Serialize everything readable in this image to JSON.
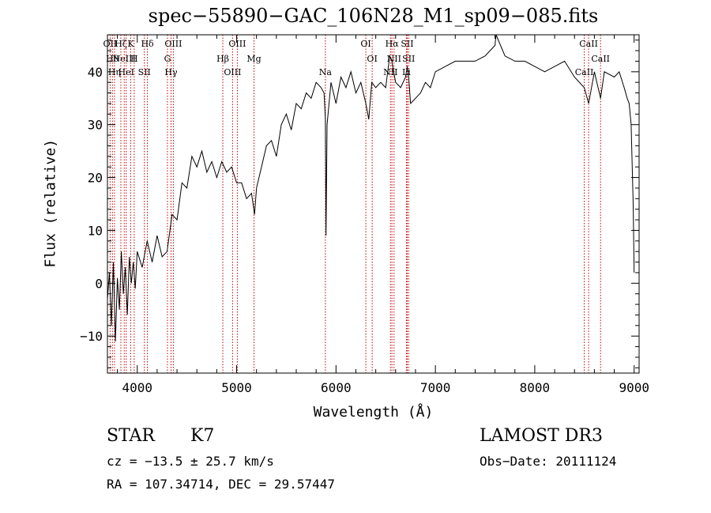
{
  "chart_data": {
    "type": "line",
    "title": "spec−55890−GAC_106N28_M1_sp09−085.fits",
    "xlabel": "Wavelength (Å)",
    "ylabel": "Flux (relative)",
    "xlim": [
      3700,
      9050
    ],
    "ylim": [
      -17,
      47
    ],
    "xticks": [
      4000,
      5000,
      6000,
      7000,
      8000,
      9000
    ],
    "yticks": [
      -10,
      0,
      10,
      20,
      30,
      40
    ],
    "ytick_labels": [
      "−10",
      "0",
      "10",
      "20",
      "30",
      "40"
    ],
    "grid": false,
    "series": [
      {
        "name": "flux",
        "x": [
          3700,
          3720,
          3740,
          3760,
          3780,
          3800,
          3820,
          3840,
          3860,
          3880,
          3900,
          3920,
          3940,
          3960,
          3980,
          4000,
          4050,
          4100,
          4150,
          4200,
          4250,
          4300,
          4350,
          4400,
          4450,
          4500,
          4550,
          4600,
          4650,
          4700,
          4750,
          4800,
          4850,
          4900,
          4950,
          5000,
          5050,
          5100,
          5150,
          5180,
          5200,
          5250,
          5300,
          5350,
          5400,
          5450,
          5500,
          5550,
          5600,
          5650,
          5700,
          5750,
          5800,
          5850,
          5880,
          5893,
          5900,
          5910,
          5950,
          6000,
          6050,
          6100,
          6150,
          6200,
          6250,
          6300,
          6330,
          6360,
          6400,
          6450,
          6500,
          6540,
          6563,
          6580,
          6600,
          6650,
          6700,
          6717,
          6731,
          6750,
          6800,
          6850,
          6900,
          6950,
          7000,
          7100,
          7200,
          7300,
          7400,
          7500,
          7600,
          7610,
          7700,
          7800,
          7900,
          8000,
          8100,
          8200,
          8300,
          8400,
          8498,
          8542,
          8600,
          8662,
          8700,
          8800,
          8850,
          8900,
          8930,
          8950,
          8970,
          8990,
          9000
        ],
        "y": [
          -3,
          2,
          -8,
          4,
          -11,
          1,
          -5,
          6,
          -2,
          3,
          -6,
          5,
          0,
          4,
          -1,
          6,
          3,
          8,
          4,
          9,
          5,
          6,
          13,
          12,
          19,
          18,
          24,
          22,
          25,
          21,
          23,
          20,
          23,
          21,
          22,
          19,
          19,
          16,
          17,
          13,
          18,
          22,
          26,
          27,
          24,
          30,
          32,
          29,
          34,
          33,
          36,
          35,
          38,
          37,
          36,
          31,
          9,
          30,
          38,
          34,
          39,
          37,
          40,
          36,
          38,
          34,
          31,
          38,
          37,
          38,
          37,
          43,
          42,
          40,
          38,
          37,
          39,
          41,
          39,
          34,
          35,
          36,
          38,
          37,
          40,
          41,
          42,
          42,
          42,
          43,
          45,
          47,
          43,
          42,
          42,
          41,
          40,
          41,
          42,
          39,
          37,
          34,
          40,
          35,
          40,
          39,
          40,
          37,
          35,
          34,
          30,
          15,
          2
        ]
      }
    ],
    "line_markers": [
      {
        "wavelength": 3727,
        "label": "OII"
      },
      {
        "wavelength": 3750,
        "label": "Hθ"
      },
      {
        "wavelength": 3771,
        "label": "Hη"
      },
      {
        "wavelength": 3835,
        "label": "Hζ"
      },
      {
        "wavelength": 3869,
        "label": "NeIII"
      },
      {
        "wavelength": 3889,
        "label": "HeI"
      },
      {
        "wavelength": 3934,
        "label": "K"
      },
      {
        "wavelength": 3969,
        "label": "H"
      },
      {
        "wavelength": 4072,
        "label": "SII"
      },
      {
        "wavelength": 4102,
        "label": "Hδ"
      },
      {
        "wavelength": 4304,
        "label": "G"
      },
      {
        "wavelength": 4340,
        "label": "Hγ"
      },
      {
        "wavelength": 4363,
        "label": "OIII"
      },
      {
        "wavelength": 4861,
        "label": "Hβ"
      },
      {
        "wavelength": 4959,
        "label": "OIII"
      },
      {
        "wavelength": 5007,
        "label": "OIII"
      },
      {
        "wavelength": 5175,
        "label": "Mg"
      },
      {
        "wavelength": 5893,
        "label": "Na"
      },
      {
        "wavelength": 6300,
        "label": "OI"
      },
      {
        "wavelength": 6364,
        "label": "OI"
      },
      {
        "wavelength": 6548,
        "label": "NII"
      },
      {
        "wavelength": 6563,
        "label": "Hα"
      },
      {
        "wavelength": 6584,
        "label": "NII"
      },
      {
        "wavelength": 6708,
        "label": "Li"
      },
      {
        "wavelength": 6717,
        "label": "SII"
      },
      {
        "wavelength": 6731,
        "label": "SII"
      },
      {
        "wavelength": 8498,
        "label": "CaII"
      },
      {
        "wavelength": 8542,
        "label": "CaII"
      },
      {
        "wavelength": 8662,
        "label": "CaII"
      }
    ]
  },
  "info": {
    "object_class": "STAR",
    "subclass": "K7",
    "survey": "LAMOST DR3",
    "redshift": "cz = −13.5 ± 25.7 km/s",
    "obs_date": "Obs−Date: 20111124",
    "coords": "RA = 107.34714, DEC =  29.57447"
  }
}
